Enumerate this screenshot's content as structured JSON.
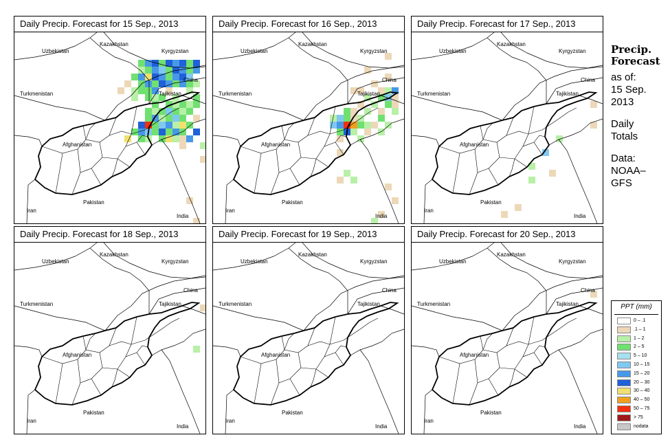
{
  "panels": [
    {
      "title": "Daily Precip. Forecast for  15 Sep., 2013",
      "countries": [
        "Kazakhstan",
        "Uzbekistan",
        "Kyrgyzstan",
        "China",
        "Turkmenistan",
        "Tajikistan",
        "Afghanistan",
        "Pakistan",
        "Iran",
        "India"
      ]
    },
    {
      "title": "Daily Precip. Forecast for  16 Sep., 2013",
      "countries": [
        "Kazakhstan",
        "Uzbekistan",
        "Kyrgyzstan",
        "China",
        "Turkmenistan",
        "Tajikistan",
        "Afghanistan",
        "Pakistan",
        "Iran",
        "India"
      ]
    },
    {
      "title": "Daily Precip. Forecast for  17 Sep., 2013",
      "countries": [
        "Kazakhstan",
        "Uzbekistan",
        "Kyrgyzstan",
        "China",
        "Turkmenistan",
        "Tajikistan",
        "Afghanistan",
        "Pakistan",
        "Iran",
        "India"
      ]
    },
    {
      "title": "Daily Precip. Forecast for  18 Sep., 2013",
      "countries": [
        "Kazakhstan",
        "Uzbekistan",
        "Kyrgyzstan",
        "China",
        "Turkmenistan",
        "Tajikistan",
        "Afghanistan",
        "Pakistan",
        "Iran",
        "India"
      ]
    },
    {
      "title": "Daily Precip. Forecast for  19 Sep., 2013",
      "countries": [
        "Kazakhstan",
        "Uzbekistan",
        "Kyrgyzstan",
        "China",
        "Turkmenistan",
        "Tajikistan",
        "Afghanistan",
        "Pakistan",
        "Iran",
        "India"
      ]
    },
    {
      "title": "Daily Precip. Forecast for  20 Sep., 2013",
      "countries": [
        "Kazakhstan",
        "Uzbekistan",
        "Kyrgyzstan",
        "China",
        "Turkmenistan",
        "Tajikistan",
        "Afghanistan",
        "Pakistan",
        "Iran",
        "India"
      ]
    }
  ],
  "side": {
    "title_line1": "Precip.",
    "title_line2": "Forecast",
    "asof_label": "as of:",
    "asof_date1": "15 Sep.",
    "asof_date2": "2013",
    "totals1": "Daily",
    "totals2": "Totals",
    "data_label": "Data:",
    "data_src1": "NOAA–",
    "data_src2": "GFS"
  },
  "legend": {
    "title": "PPT (mm)",
    "entries": [
      {
        "label": "0 – .1",
        "color": "#ffffff"
      },
      {
        "label": ".1 – 1",
        "color": "#ecd8b8"
      },
      {
        "label": "1 – 2",
        "color": "#b8f0a8"
      },
      {
        "label": "2 – 5",
        "color": "#70e070"
      },
      {
        "label": "5 – 10",
        "color": "#a8e0f0"
      },
      {
        "label": "10 – 15",
        "color": "#80c8f0"
      },
      {
        "label": "15 – 20",
        "color": "#4898e8"
      },
      {
        "label": "20 – 30",
        "color": "#2060d8"
      },
      {
        "label": "30 – 40",
        "color": "#f0e070"
      },
      {
        "label": "40 – 50",
        "color": "#f0a020"
      },
      {
        "label": "50 – 75",
        "color": "#f03010"
      },
      {
        "label": "> 75",
        "color": "#a01818"
      },
      {
        "label": "nodata",
        "color": "#c8c8c8"
      }
    ]
  }
}
